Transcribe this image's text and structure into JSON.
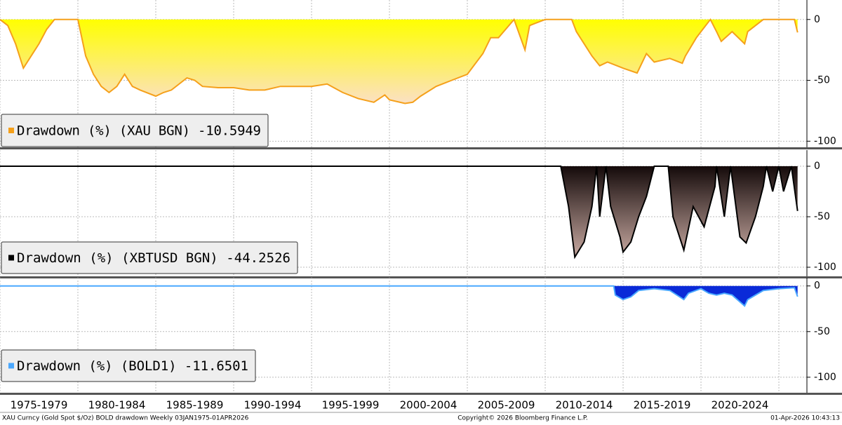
{
  "chart_data": [
    {
      "type": "area",
      "ylim": [
        -105,
        16
      ],
      "yticks": [
        0,
        -50,
        -100
      ],
      "xlim": [
        1975,
        2026.8
      ],
      "xticks": [
        1975,
        1980,
        1985,
        1990,
        1995,
        2000,
        2005,
        2010,
        2015,
        2020,
        2025
      ],
      "grid": true,
      "legend": "lower left",
      "series": [
        {
          "name": "Drawdown (%) (XAU BGN) -10.5949",
          "color": "#f5a01a",
          "fill_top": "#ffff00",
          "fill_bottom": "#fbe0c4",
          "x": [
            1975,
            1975.5,
            1976,
            1976.5,
            1977,
            1977.5,
            1978,
            1978.5,
            1979,
            1980,
            1980.5,
            1981,
            1981.5,
            1982,
            1982.5,
            1983,
            1983.5,
            1984,
            1985,
            1985.5,
            1986,
            1987,
            1987.5,
            1988,
            1989,
            1990,
            1991,
            1992,
            1993,
            1994,
            1995,
            1996,
            1997,
            1998,
            1999,
            1999.7,
            2000,
            2001,
            2001.5,
            2002,
            2003,
            2004,
            2005,
            2006,
            2006.5,
            2007,
            2008,
            2008.7,
            2009,
            2010,
            2011,
            2011.7,
            2012,
            2013,
            2013.5,
            2014,
            2015,
            2015.9,
            2016.5,
            2017,
            2018,
            2018.8,
            2019,
            2019.7,
            2020,
            2020.6,
            2021,
            2021.3,
            2022,
            2022.8,
            2023,
            2024,
            2025,
            2026,
            2026.2
          ],
          "values": [
            0,
            -5,
            -20,
            -40,
            -30,
            -20,
            -8,
            0,
            0,
            0,
            -30,
            -45,
            -55,
            -60,
            -55,
            -45,
            -55,
            -58,
            -63,
            -60,
            -58,
            -48,
            -50,
            -55,
            -56,
            -56,
            -58,
            -58,
            -55,
            -55,
            -55,
            -53,
            -60,
            -65,
            -68,
            -62,
            -66,
            -69,
            -68,
            -63,
            -55,
            -50,
            -45,
            -28,
            -15,
            -15,
            0,
            -25,
            -5,
            0,
            0,
            0,
            -10,
            -30,
            -38,
            -35,
            -40,
            -44,
            -28,
            -35,
            -32,
            -36,
            -30,
            -15,
            -10,
            0,
            -10,
            -18,
            -10,
            -20,
            -10,
            0,
            0,
            0,
            -10.5949
          ]
        }
      ]
    },
    {
      "type": "area",
      "ylim": [
        -109,
        16
      ],
      "yticks": [
        0,
        -50,
        -100
      ],
      "xlim": [
        1975,
        2026.8
      ],
      "xticks": [
        1975,
        1980,
        1985,
        1990,
        1995,
        2000,
        2005,
        2010,
        2015,
        2020,
        2025
      ],
      "grid": true,
      "legend": "lower left",
      "series": [
        {
          "name": "Drawdown (%) (XBTUSD BGN) -44.2526",
          "color": "#000000",
          "fill_top": "#140a0a",
          "fill_bottom": "#c9aaa2",
          "x": [
            1975,
            2010.7,
            2011,
            2011.5,
            2011.9,
            2012.5,
            2013,
            2013.3,
            2013.5,
            2013.9,
            2014.2,
            2014.8,
            2015,
            2015.5,
            2016,
            2016.5,
            2017,
            2017.9,
            2018.2,
            2018.9,
            2019.5,
            2020.2,
            2020.9,
            2021,
            2021.5,
            2021.9,
            2022.5,
            2022.9,
            2023.5,
            2024,
            2024.2,
            2024.6,
            2025,
            2025.3,
            2025.8,
            2026.2
          ],
          "values": [
            0,
            0,
            0,
            -40,
            -90,
            -75,
            -40,
            0,
            -50,
            0,
            -40,
            -70,
            -85,
            -75,
            -50,
            -30,
            0,
            0,
            -50,
            -83,
            -40,
            -60,
            -20,
            0,
            -50,
            0,
            -70,
            -76,
            -50,
            -20,
            0,
            -25,
            0,
            -25,
            0,
            -44.2526
          ]
        }
      ]
    },
    {
      "type": "area",
      "ylim": [
        -117,
        9
      ],
      "yticks": [
        0,
        -50,
        -100
      ],
      "xlim": [
        1975,
        2026.8
      ],
      "xticks": [
        1975,
        1980,
        1985,
        1990,
        1995,
        2000,
        2005,
        2010,
        2015,
        2020,
        2025
      ],
      "grid": true,
      "legend": "lower left",
      "series": [
        {
          "name": "Drawdown (%) (BOLD1) -11.6501",
          "color": "#4aa8ff",
          "fill_top": "#0a2ad8",
          "fill_bottom": "#0a2ad8",
          "x": [
            1975,
            2014.4,
            2014.5,
            2015,
            2015.5,
            2016,
            2017,
            2018,
            2018.9,
            2019.2,
            2020,
            2020.5,
            2021,
            2021.5,
            2022,
            2022.8,
            2023,
            2024,
            2025,
            2026,
            2026.2
          ],
          "values": [
            0,
            0,
            -10,
            -15,
            -12,
            -5,
            -3,
            -5,
            -15,
            -8,
            -3,
            -8,
            -10,
            -8,
            -10,
            -22,
            -15,
            -5,
            -3,
            -2,
            -11.6501
          ]
        }
      ]
    }
  ],
  "x_labels": [
    "1975-1979",
    "1980-1984",
    "1985-1989",
    "1990-1994",
    "1995-1999",
    "2000-2004",
    "2005-2009",
    "2010-2014",
    "2015-2019",
    "2020-2024"
  ],
  "footer": {
    "left": "XAU Curncy (Gold Spot  $/Oz) BOLD drawdown Weekly 03JAN1975-01APR2026",
    "center": "Copyright© 2026 Bloomberg Finance L.P.",
    "right": "01-Apr-2026 10:43:13"
  }
}
